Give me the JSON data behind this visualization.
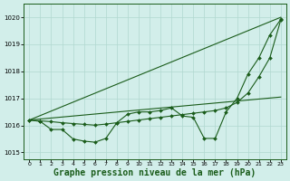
{
  "background_color": "#d2eeea",
  "grid_color": "#b0d8d0",
  "line_color": "#1a5c1a",
  "xlabel": "Graphe pression niveau de la mer (hPa)",
  "xlabel_fontsize": 7,
  "ylim": [
    1014.75,
    1020.5
  ],
  "xlim": [
    -0.5,
    23.5
  ],
  "yticks": [
    1015,
    1016,
    1017,
    1018,
    1019,
    1020
  ],
  "xticks": [
    0,
    1,
    2,
    3,
    4,
    5,
    6,
    7,
    8,
    9,
    10,
    11,
    12,
    13,
    14,
    15,
    16,
    17,
    18,
    19,
    20,
    21,
    22,
    23
  ],
  "line1_x": [
    0,
    23
  ],
  "line1_y": [
    1016.2,
    1020.0
  ],
  "line2_x": [
    0,
    23
  ],
  "line2_y": [
    1016.2,
    1017.05
  ],
  "line3_x": [
    0,
    1,
    2,
    3,
    4,
    5,
    6,
    7,
    8,
    9,
    10,
    11,
    12,
    13,
    14,
    15,
    16,
    17,
    18,
    19,
    20,
    21,
    22,
    23
  ],
  "line3_y": [
    1016.2,
    1016.15,
    1015.85,
    1015.85,
    1015.5,
    1015.42,
    1015.38,
    1015.52,
    1016.1,
    1016.42,
    1016.5,
    1016.5,
    1016.55,
    1016.65,
    1016.35,
    1016.3,
    1015.52,
    1015.52,
    1016.5,
    1017.0,
    1017.9,
    1018.5,
    1019.35,
    1019.92
  ],
  "line4_x": [
    0,
    1,
    2,
    3,
    4,
    5,
    6,
    7,
    8,
    9,
    10,
    11,
    12,
    13,
    14,
    15,
    16,
    17,
    18,
    19,
    20,
    21,
    22,
    23
  ],
  "line4_y": [
    1016.2,
    1016.17,
    1016.14,
    1016.1,
    1016.07,
    1016.04,
    1016.01,
    1016.05,
    1016.1,
    1016.15,
    1016.2,
    1016.25,
    1016.3,
    1016.35,
    1016.4,
    1016.45,
    1016.5,
    1016.55,
    1016.65,
    1016.85,
    1017.2,
    1017.8,
    1018.5,
    1019.9
  ]
}
